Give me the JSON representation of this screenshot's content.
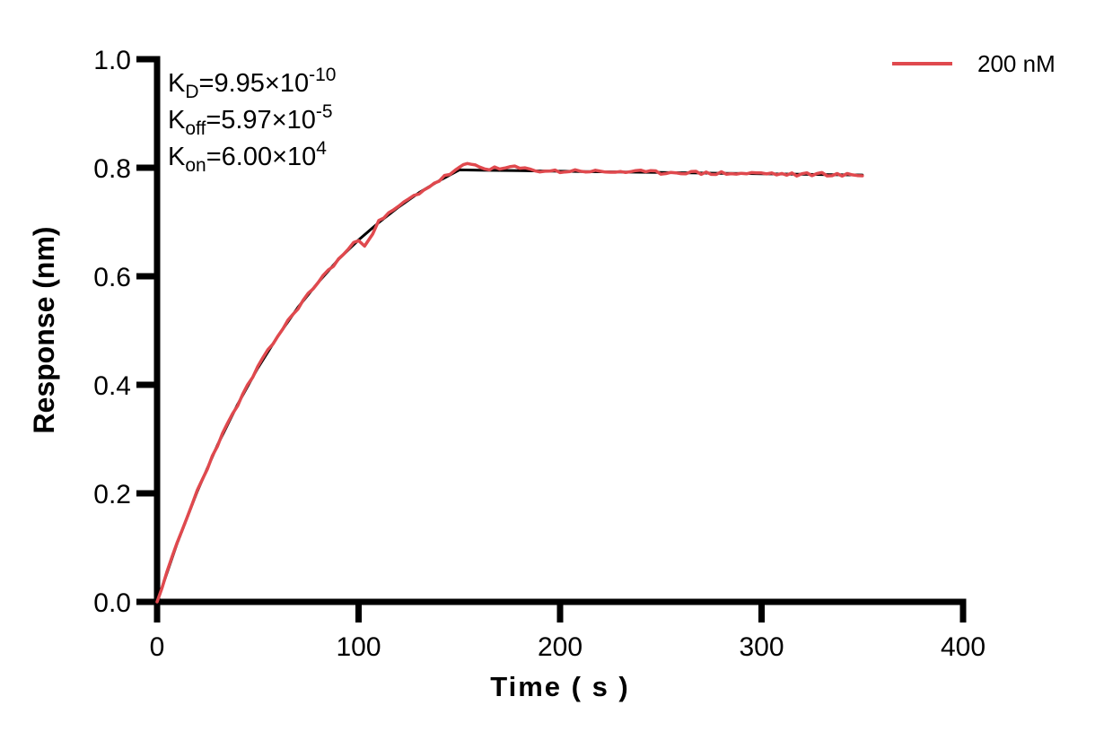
{
  "page": {
    "background": "#ffffff"
  },
  "chart_data": {
    "type": "line",
    "title": "",
    "xlabel": "Time ( s )",
    "ylabel": "Response (nm)",
    "xlim": [
      0,
      400
    ],
    "ylim": [
      0.0,
      1.0
    ],
    "xticks": [
      0,
      100,
      200,
      300,
      400
    ],
    "xtick_labels": [
      "0",
      "100",
      "200",
      "300",
      "400"
    ],
    "yticks": [
      0.0,
      0.2,
      0.4,
      0.6,
      0.8,
      1.0
    ],
    "ytick_labels": [
      "0.0",
      "0.2",
      "0.4",
      "0.6",
      "0.8",
      "1.0"
    ],
    "grid": false,
    "axis_color": "#000000",
    "legend": {
      "position": "top-right",
      "entries": [
        {
          "label": "200 nM",
          "color": "#E0494E"
        }
      ]
    },
    "kinetics": {
      "KD": 9.95e-10,
      "Koff": 5.97e-05,
      "Kon": 60000.0
    },
    "annotations": [
      {
        "name": "KD",
        "parts": [
          [
            "t",
            "K"
          ],
          [
            "sub",
            "D"
          ],
          [
            "t",
            "=9.95×10"
          ],
          [
            "sup",
            "-10"
          ]
        ]
      },
      {
        "name": "Koff",
        "parts": [
          [
            "t",
            "K"
          ],
          [
            "sub",
            "off"
          ],
          [
            "t",
            "=5.97×10"
          ],
          [
            "sup",
            "-5"
          ]
        ]
      },
      {
        "name": "Kon",
        "parts": [
          [
            "t",
            "K"
          ],
          [
            "sub",
            "on"
          ],
          [
            "t",
            "=6.00×10"
          ],
          [
            "sup",
            "4"
          ]
        ]
      }
    ],
    "association_end_s": 150,
    "trace_end_s": 350,
    "noise_seed": 23,
    "series": [
      {
        "name": "fit",
        "color": "#000000",
        "width": 3,
        "noise": 0,
        "points": [
          [
            0,
            0
          ],
          [
            10,
            0.108
          ],
          [
            20,
            0.204
          ],
          [
            30,
            0.289
          ],
          [
            40,
            0.364
          ],
          [
            50,
            0.431
          ],
          [
            60,
            0.49
          ],
          [
            70,
            0.543
          ],
          [
            80,
            0.589
          ],
          [
            90,
            0.631
          ],
          [
            100,
            0.667
          ],
          [
            110,
            0.699
          ],
          [
            120,
            0.728
          ],
          [
            130,
            0.754
          ],
          [
            140,
            0.776
          ],
          [
            150,
            0.796
          ],
          [
            160,
            0.7955
          ],
          [
            170,
            0.795
          ],
          [
            180,
            0.7946
          ],
          [
            190,
            0.7941
          ],
          [
            200,
            0.7936
          ],
          [
            210,
            0.7931
          ],
          [
            220,
            0.7926
          ],
          [
            230,
            0.7922
          ],
          [
            240,
            0.7917
          ],
          [
            250,
            0.7912
          ],
          [
            260,
            0.7908
          ],
          [
            270,
            0.7903
          ],
          [
            280,
            0.7898
          ],
          [
            290,
            0.7894
          ],
          [
            300,
            0.7889
          ],
          [
            310,
            0.7884
          ],
          [
            320,
            0.788
          ],
          [
            330,
            0.7875
          ],
          [
            340,
            0.787
          ],
          [
            350,
            0.7866
          ]
        ]
      },
      {
        "name": "200 nM",
        "color": "#E0494E",
        "width": 3.5,
        "noise": 0.0035,
        "points": [
          [
            0,
            0
          ],
          [
            10,
            0.108
          ],
          [
            20,
            0.205
          ],
          [
            30,
            0.29
          ],
          [
            40,
            0.364
          ],
          [
            50,
            0.432
          ],
          [
            60,
            0.491
          ],
          [
            70,
            0.543
          ],
          [
            80,
            0.59
          ],
          [
            90,
            0.631
          ],
          [
            95,
            0.65
          ],
          [
            100,
            0.668
          ],
          [
            103,
            0.659
          ],
          [
            107,
            0.68
          ],
          [
            110,
            0.7
          ],
          [
            120,
            0.729
          ],
          [
            130,
            0.754
          ],
          [
            140,
            0.777
          ],
          [
            148,
            0.795
          ],
          [
            152,
            0.803
          ],
          [
            156,
            0.807
          ],
          [
            160,
            0.801
          ],
          [
            165,
            0.799
          ],
          [
            170,
            0.797
          ],
          [
            175,
            0.801
          ],
          [
            180,
            0.799
          ],
          [
            185,
            0.796
          ],
          [
            190,
            0.795
          ],
          [
            200,
            0.793
          ],
          [
            210,
            0.795
          ],
          [
            220,
            0.792
          ],
          [
            230,
            0.793
          ],
          [
            240,
            0.792
          ],
          [
            250,
            0.791
          ],
          [
            260,
            0.792
          ],
          [
            270,
            0.79
          ],
          [
            280,
            0.79
          ],
          [
            290,
            0.789
          ],
          [
            300,
            0.79
          ],
          [
            310,
            0.788
          ],
          [
            320,
            0.787
          ],
          [
            330,
            0.789
          ],
          [
            340,
            0.786
          ],
          [
            350,
            0.787
          ]
        ]
      }
    ]
  }
}
